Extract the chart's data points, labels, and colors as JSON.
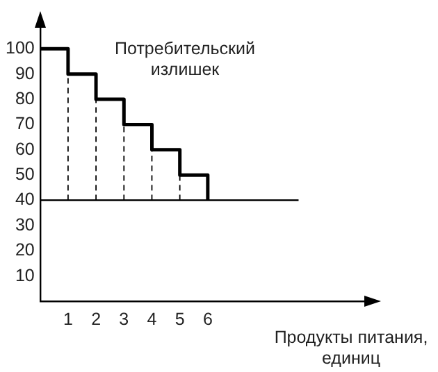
{
  "chart_data": {
    "type": "step",
    "xlabel": "Продукты питания, единиц",
    "annotations": [
      "Потребительский излишек"
    ],
    "xlim": [
      0,
      12
    ],
    "ylim": [
      0,
      113
    ],
    "xticks": [
      1,
      2,
      3,
      4,
      5,
      6
    ],
    "yticks": [
      10,
      20,
      30,
      40,
      50,
      60,
      70,
      80,
      90,
      100
    ],
    "grid": false,
    "legend": false,
    "marker": "none",
    "series": [
      {
        "color": "#000000",
        "x": [
          0,
          1,
          2,
          3,
          4,
          5,
          6
        ],
        "values": [
          100,
          90,
          80,
          70,
          60,
          50,
          40
        ]
      },
      {
        "type": "line",
        "color": "#000000",
        "x": [
          0,
          9.25
        ],
        "values": [
          40,
          40
        ]
      },
      {
        "type": "line",
        "line_style": "dashed",
        "color": "#000000",
        "x": [
          1,
          1
        ],
        "values": [
          40,
          90
        ]
      },
      {
        "type": "line",
        "line_style": "dashed",
        "color": "#000000",
        "x": [
          2,
          2
        ],
        "values": [
          40,
          80
        ]
      },
      {
        "type": "line",
        "line_style": "dashed",
        "color": "#000000",
        "x": [
          3,
          3
        ],
        "values": [
          40,
          70
        ]
      },
      {
        "type": "line",
        "line_style": "dashed",
        "color": "#000000",
        "x": [
          4,
          4
        ],
        "values": [
          40,
          60
        ]
      },
      {
        "type": "line",
        "line_style": "dashed",
        "color": "#000000",
        "x": [
          5,
          5
        ],
        "values": [
          40,
          50
        ]
      }
    ]
  }
}
